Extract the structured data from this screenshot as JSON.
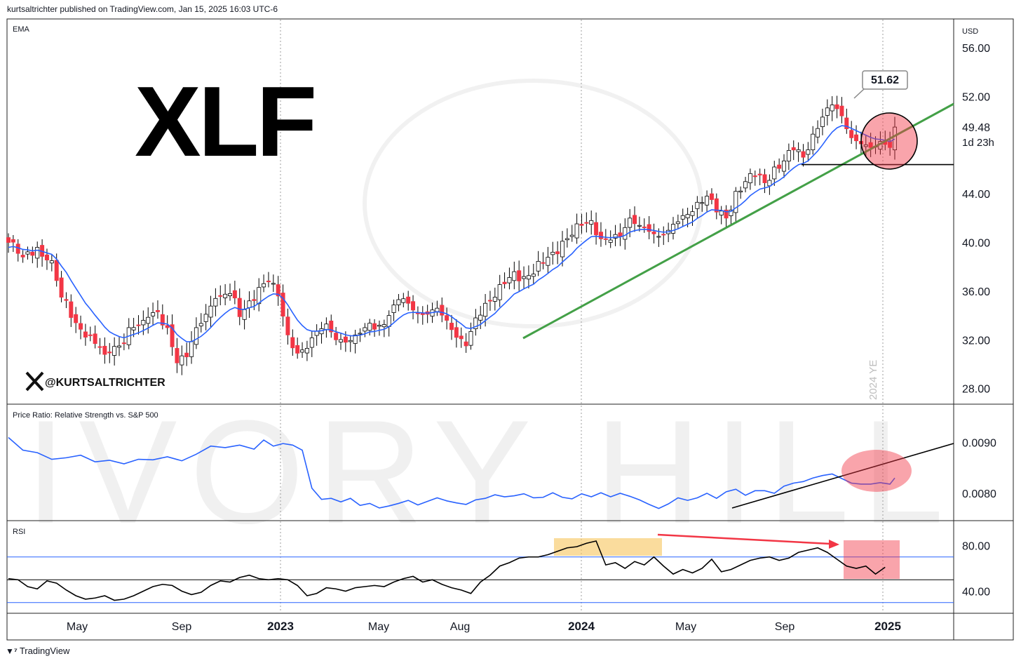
{
  "header": {
    "published": "kurtsaltrichter published on TradingView.com, Jan 15, 2025 16:03 UTC-6"
  },
  "footer": {
    "brand": "TradingView"
  },
  "watermark": {
    "text": "IVORY HILL"
  },
  "colors": {
    "up_candle": "#ffffff",
    "down_candle": "#f23645",
    "ema": "#2962ff",
    "trend_green": "#43a047",
    "ratio_line": "#2962ff",
    "rsi_line": "#000000",
    "highlight_yellow": "#f7c55c",
    "highlight_red": "#f23645",
    "annotation_arrow": "#f23645"
  },
  "chart_data": [
    {
      "type": "candlestick",
      "ticker_label": "XLF",
      "indicator_label": "EMA",
      "handle": "@KURTSALTRICHTER",
      "currency": "USD",
      "y_ticks": [
        "56.00",
        "52.00",
        "49.48",
        "44.00",
        "40.00",
        "36.00",
        "32.00",
        "28.00"
      ],
      "y_range": [
        27,
        57.5
      ],
      "last_price": "49.48",
      "countdown": "1d 23h",
      "callout": "51.62",
      "year_end_label": "2024 YE",
      "support_level": 46.4,
      "x_labels": [
        "May",
        "Sep",
        "2023",
        "May",
        "Aug",
        "2024",
        "May",
        "Sep",
        "2025"
      ],
      "series": [
        {
          "name": "XLF",
          "kind": "weekly candles",
          "close_path": [
            [
              0,
              40.0
            ],
            [
              3,
              38.8
            ],
            [
              6,
              39.6
            ],
            [
              9,
              38.5
            ],
            [
              11,
              35.5
            ],
            [
              14,
              33.4
            ],
            [
              17,
              32.4
            ],
            [
              20,
              30.8
            ],
            [
              23,
              31.5
            ],
            [
              25,
              33.0
            ],
            [
              28,
              33.6
            ],
            [
              31,
              34.3
            ],
            [
              33,
              33.0
            ],
            [
              35,
              30.1
            ],
            [
              37,
              30.6
            ],
            [
              39,
              33.0
            ],
            [
              41,
              34.1
            ],
            [
              43,
              35.4
            ],
            [
              46,
              35.8
            ],
            [
              48,
              33.9
            ],
            [
              50,
              35.2
            ],
            [
              52,
              36.3
            ],
            [
              54,
              36.8
            ],
            [
              56,
              35.6
            ],
            [
              58,
              32.4
            ],
            [
              60,
              30.9
            ],
            [
              62,
              31.3
            ],
            [
              64,
              32.7
            ],
            [
              66,
              33.3
            ],
            [
              68,
              32.0
            ],
            [
              70,
              31.8
            ],
            [
              72,
              32.4
            ],
            [
              74,
              33.0
            ],
            [
              77,
              33.2
            ],
            [
              79,
              34.0
            ],
            [
              81,
              35.3
            ],
            [
              83,
              35.0
            ],
            [
              85,
              34.2
            ],
            [
              87,
              34.1
            ],
            [
              89,
              34.6
            ],
            [
              91,
              33.6
            ],
            [
              93,
              32.2
            ],
            [
              95,
              31.5
            ],
            [
              97,
              33.8
            ],
            [
              99,
              35.0
            ],
            [
              101,
              35.5
            ],
            [
              103,
              36.6
            ],
            [
              105,
              37.6
            ],
            [
              107,
              37.2
            ],
            [
              109,
              37.4
            ],
            [
              111,
              38.3
            ],
            [
              113,
              39.2
            ],
            [
              115,
              40.1
            ],
            [
              117,
              40.6
            ],
            [
              119,
              41.4
            ],
            [
              121,
              41.8
            ],
            [
              123,
              40.3
            ],
            [
              125,
              40.2
            ],
            [
              127,
              40.5
            ],
            [
              129,
              42.0
            ],
            [
              131,
              41.4
            ],
            [
              133,
              40.9
            ],
            [
              135,
              40.5
            ],
            [
              137,
              41.0
            ],
            [
              139,
              41.7
            ],
            [
              141,
              42.3
            ],
            [
              143,
              43.3
            ],
            [
              145,
              43.8
            ],
            [
              147,
              42.5
            ],
            [
              149,
              42.0
            ],
            [
              151,
              44.2
            ],
            [
              153,
              45.0
            ],
            [
              155,
              45.4
            ],
            [
              157,
              44.9
            ],
            [
              159,
              46.2
            ],
            [
              161,
              46.7
            ],
            [
              163,
              47.6
            ],
            [
              165,
              47.0
            ],
            [
              167,
              48.9
            ],
            [
              169,
              50.3
            ],
            [
              171,
              51.3
            ],
            [
              173,
              50.4
            ],
            [
              175,
              48.6
            ],
            [
              177,
              48.1
            ],
            [
              179,
              47.8
            ],
            [
              181,
              48.3
            ],
            [
              183,
              47.8
            ],
            [
              184,
              49.48
            ]
          ]
        },
        {
          "name": "EMA",
          "kind": "line"
        }
      ]
    },
    {
      "type": "line",
      "title": "Price Ratio: Relative Strength vs. S&P 500",
      "y_ticks": [
        "0.0090",
        "0.0080"
      ],
      "y_range": [
        0.00746,
        0.00948
      ],
      "series": [
        {
          "name": "Price Ratio",
          "points": [
            [
              0,
              0.0091
            ],
            [
              3,
              0.00885
            ],
            [
              6,
              0.0088
            ],
            [
              9,
              0.00867
            ],
            [
              12,
              0.0087
            ],
            [
              15,
              0.00875
            ],
            [
              18,
              0.00862
            ],
            [
              21,
              0.00865
            ],
            [
              24,
              0.00858
            ],
            [
              27,
              0.00867
            ],
            [
              30,
              0.00866
            ],
            [
              33,
              0.00872
            ],
            [
              36,
              0.00864
            ],
            [
              39,
              0.00877
            ],
            [
              42,
              0.00893
            ],
            [
              45,
              0.0089
            ],
            [
              48,
              0.00895
            ],
            [
              51,
              0.00887
            ],
            [
              53,
              0.00905
            ],
            [
              55,
              0.00893
            ],
            [
              57,
              0.00898
            ],
            [
              59,
              0.00895
            ],
            [
              61,
              0.00885
            ],
            [
              63,
              0.0081
            ],
            [
              65,
              0.00788
            ],
            [
              67,
              0.0079
            ],
            [
              69,
              0.00783
            ],
            [
              71,
              0.0079
            ],
            [
              73,
              0.00776
            ],
            [
              75,
              0.0078
            ],
            [
              77,
              0.00771
            ],
            [
              79,
              0.00775
            ],
            [
              81,
              0.0078
            ],
            [
              83,
              0.00786
            ],
            [
              85,
              0.00777
            ],
            [
              87,
              0.00784
            ],
            [
              89,
              0.00791
            ],
            [
              91,
              0.00785
            ],
            [
              93,
              0.00781
            ],
            [
              95,
              0.00778
            ],
            [
              97,
              0.00787
            ],
            [
              99,
              0.0079
            ],
            [
              101,
              0.00797
            ],
            [
              103,
              0.00793
            ],
            [
              105,
              0.00795
            ],
            [
              107,
              0.00799
            ],
            [
              109,
              0.00791
            ],
            [
              111,
              0.00792
            ],
            [
              113,
              0.00801
            ],
            [
              115,
              0.00792
            ],
            [
              117,
              0.00789
            ],
            [
              119,
              0.00799
            ],
            [
              121,
              0.00793
            ],
            [
              123,
              0.00801
            ],
            [
              125,
              0.00793
            ],
            [
              127,
              0.008
            ],
            [
              129,
              0.00794
            ],
            [
              131,
              0.00787
            ],
            [
              133,
              0.00778
            ],
            [
              135,
              0.0077
            ],
            [
              137,
              0.00779
            ],
            [
              139,
              0.00791
            ],
            [
              141,
              0.00786
            ],
            [
              143,
              0.00791
            ],
            [
              145,
              0.008
            ],
            [
              147,
              0.0079
            ],
            [
              149,
              0.00803
            ],
            [
              151,
              0.00808
            ],
            [
              153,
              0.00796
            ],
            [
              155,
              0.00805
            ],
            [
              157,
              0.00805
            ],
            [
              159,
              0.008
            ],
            [
              161,
              0.00814
            ],
            [
              163,
              0.0082
            ],
            [
              165,
              0.00823
            ],
            [
              167,
              0.0083
            ],
            [
              169,
              0.00835
            ],
            [
              171,
              0.00838
            ],
            [
              173,
              0.00829
            ],
            [
              175,
              0.0082
            ],
            [
              177,
              0.00818
            ],
            [
              179,
              0.00818
            ],
            [
              181,
              0.00821
            ],
            [
              183,
              0.00818
            ],
            [
              184,
              0.0083
            ]
          ]
        }
      ]
    },
    {
      "type": "line",
      "title": "RSI",
      "y_ticks": [
        "80.00",
        "40.00"
      ],
      "y_range": [
        20,
        100
      ],
      "bands": [
        70,
        50,
        30
      ],
      "series": [
        {
          "name": "RSI",
          "points": [
            [
              0,
              51
            ],
            [
              2,
              50
            ],
            [
              4,
              44
            ],
            [
              6,
              42
            ],
            [
              8,
              49
            ],
            [
              10,
              47
            ],
            [
              12,
              41
            ],
            [
              14,
              36
            ],
            [
              16,
              33
            ],
            [
              18,
              34
            ],
            [
              20,
              36
            ],
            [
              22,
              32
            ],
            [
              24,
              33
            ],
            [
              26,
              36
            ],
            [
              28,
              40
            ],
            [
              30,
              44
            ],
            [
              32,
              46
            ],
            [
              34,
              45
            ],
            [
              36,
              40
            ],
            [
              38,
              37
            ],
            [
              40,
              39
            ],
            [
              42,
              45
            ],
            [
              44,
              49
            ],
            [
              46,
              48
            ],
            [
              48,
              52
            ],
            [
              50,
              54
            ],
            [
              52,
              51
            ],
            [
              54,
              50
            ],
            [
              56,
              51
            ],
            [
              58,
              50
            ],
            [
              60,
              45
            ],
            [
              62,
              36
            ],
            [
              64,
              38
            ],
            [
              66,
              43
            ],
            [
              68,
              42
            ],
            [
              70,
              40
            ],
            [
              72,
              43
            ],
            [
              74,
              44
            ],
            [
              76,
              45
            ],
            [
              78,
              44
            ],
            [
              80,
              48
            ],
            [
              82,
              51
            ],
            [
              84,
              53
            ],
            [
              86,
              48
            ],
            [
              88,
              50
            ],
            [
              90,
              46
            ],
            [
              92,
              43
            ],
            [
              94,
              41
            ],
            [
              96,
              38
            ],
            [
              98,
              48
            ],
            [
              100,
              54
            ],
            [
              102,
              62
            ],
            [
              104,
              65
            ],
            [
              106,
              69
            ],
            [
              108,
              70
            ],
            [
              110,
              70
            ],
            [
              112,
              72
            ],
            [
              114,
              75
            ],
            [
              116,
              78
            ],
            [
              118,
              79
            ],
            [
              120,
              82
            ],
            [
              122,
              84
            ],
            [
              124,
              63
            ],
            [
              126,
              65
            ],
            [
              128,
              60
            ],
            [
              130,
              66
            ],
            [
              132,
              63
            ],
            [
              134,
              70
            ],
            [
              136,
              62
            ],
            [
              138,
              55
            ],
            [
              140,
              59
            ],
            [
              142,
              56
            ],
            [
              144,
              60
            ],
            [
              146,
              68
            ],
            [
              148,
              57
            ],
            [
              150,
              59
            ],
            [
              152,
              63
            ],
            [
              154,
              67
            ],
            [
              156,
              69
            ],
            [
              158,
              70
            ],
            [
              160,
              67
            ],
            [
              162,
              69
            ],
            [
              164,
              74
            ],
            [
              166,
              76
            ],
            [
              168,
              78
            ],
            [
              170,
              74
            ],
            [
              172,
              68
            ],
            [
              174,
              62
            ],
            [
              176,
              60
            ],
            [
              178,
              62
            ],
            [
              180,
              55
            ],
            [
              182,
              61
            ]
          ]
        }
      ]
    }
  ]
}
